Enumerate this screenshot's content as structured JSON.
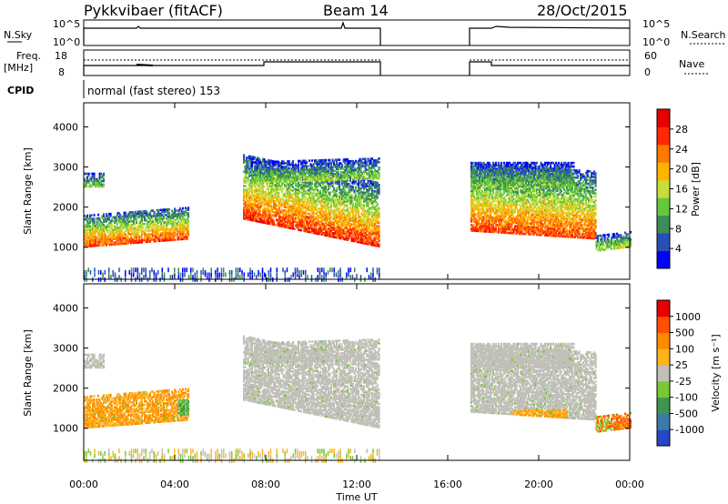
{
  "header": {
    "radar": "Pykkvibaer (fitACF)",
    "beam": "Beam 14",
    "date": "28/Oct/2015"
  },
  "status": {
    "nsky_label": "N.Sky",
    "nsearch_label": "N.Search",
    "freq_label_1": "Freq.",
    "freq_label_2": "[MHz]",
    "nave_label": "Nave",
    "cpid_label": "CPID",
    "mode_text": "normal (fast stereo) 153",
    "noise_ticks_left": [
      "10^5",
      "10^0"
    ],
    "noise_ticks_right": [
      "10^5",
      "10^0"
    ],
    "freq_ticks": [
      "18",
      "8"
    ],
    "nave_ticks": [
      "60",
      "0"
    ]
  },
  "chart_data": [
    {
      "type": "heatmap",
      "title": "",
      "quantity": "Power",
      "colorbar_label": "Power [dB]",
      "colorbar_ticks": [
        "28",
        "24",
        "20",
        "16",
        "12",
        "8",
        "4"
      ],
      "colors": [
        "#0000ff",
        "#2850b4",
        "#3c8c5a",
        "#64c83c",
        "#c8dc3c",
        "#ffb400",
        "#ff7800",
        "#ff2800",
        "#e60000"
      ],
      "ylabel": "Slant Range [km]",
      "yticks": [
        "4000",
        "3000",
        "2000",
        "1000"
      ],
      "ylim": [
        200,
        4600
      ],
      "xlim": [
        0,
        24
      ],
      "data_gap_hours": [
        13.0,
        17.0
      ]
    },
    {
      "type": "heatmap",
      "title": "",
      "quantity": "Velocity",
      "colorbar_label": "Velocity [m s⁻¹]",
      "colorbar_ticks": [
        "1000",
        "500",
        "100",
        "25",
        "-25",
        "-100",
        "-500",
        "-1000"
      ],
      "colors": [
        "#2846c8",
        "#3c78aa",
        "#3c9650",
        "#78c832",
        "#c0c0b8",
        "#ffb41e",
        "#ff8c00",
        "#ff5000",
        "#e60000"
      ],
      "ylabel": "Slant Range [km]",
      "yticks": [
        "4000",
        "3000",
        "2000",
        "1000"
      ],
      "ylim": [
        200,
        4600
      ],
      "xlim": [
        0,
        24
      ],
      "xlabel": "Time UT",
      "xticks": [
        "00:00",
        "04:00",
        "08:00",
        "12:00",
        "16:00",
        "20:00",
        "00:00"
      ]
    }
  ]
}
